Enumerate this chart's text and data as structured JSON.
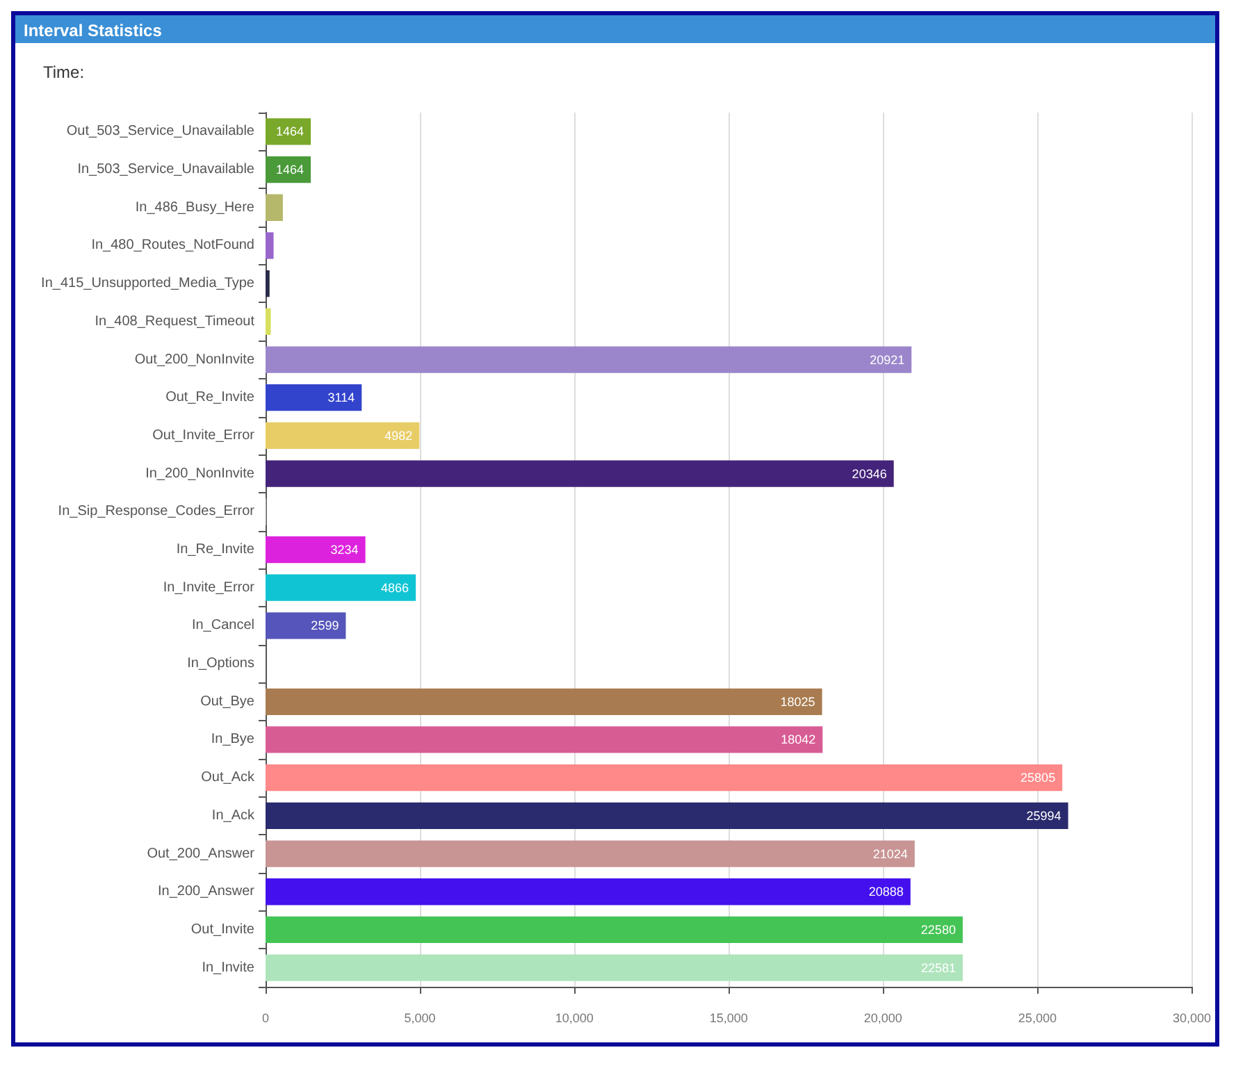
{
  "chart_data": {
    "type": "bar",
    "orientation": "horizontal",
    "title": "Interval Statistics",
    "subtitle": "Time:",
    "categories": [
      "Out_503_Service_Unavailable",
      "In_503_Service_Unavailable",
      "In_486_Busy_Here",
      "In_480_Routes_NotFound",
      "In_415_Unsupported_Media_Type",
      "In_408_Request_Timeout",
      "Out_200_NonInvite",
      "Out_Re_Invite",
      "Out_Invite_Error",
      "In_200_NonInvite",
      "In_Sip_Response_Codes_Error",
      "In_Re_Invite",
      "In_Invite_Error",
      "In_Cancel",
      "In_Options",
      "Out_Bye",
      "In_Bye",
      "Out_Ack",
      "In_Ack",
      "Out_200_Answer",
      "In_200_Answer",
      "Out_Invite",
      "In_Invite"
    ],
    "values": [
      1464,
      1464,
      560,
      260,
      130,
      170,
      20921,
      3114,
      4982,
      20346,
      30,
      3234,
      4866,
      2599,
      null,
      18025,
      18042,
      25805,
      25994,
      21024,
      20888,
      22580,
      22581
    ],
    "value_labels": [
      "1464",
      "1464",
      null,
      null,
      null,
      null,
      "20921",
      "3114",
      "4982",
      "20346",
      null,
      "3234",
      "4866",
      "2599",
      null,
      "18025",
      "18042",
      "25805",
      "25994",
      "21024",
      "20888",
      "22580",
      "22581"
    ],
    "colors": [
      "#7aa82a",
      "#4a9a3a",
      "#b5b86a",
      "#9966cc",
      "#2a2a4a",
      "#d8e060",
      "#9b86cc",
      "#3344cc",
      "#e8cc66",
      "#44237a",
      "#999999",
      "#dd22dd",
      "#11c4d4",
      "#5555bb",
      "#aaaaaa",
      "#a87c50",
      "#d85c94",
      "#ff8888",
      "#2a2a6e",
      "#c89494",
      "#4411ee",
      "#44c455",
      "#aee4bb"
    ],
    "xlim": [
      0,
      30000
    ],
    "xticks": [
      0,
      {
        "value": 5000,
        "label": "5,000"
      },
      {
        "value": 10000,
        "label": "10,000"
      },
      {
        "value": 15000,
        "label": "15,000"
      },
      {
        "value": 20000,
        "label": "20,000"
      },
      {
        "value": 25000,
        "label": "25,000"
      },
      {
        "value": 30000,
        "label": "30,000"
      }
    ],
    "grid": "x"
  }
}
